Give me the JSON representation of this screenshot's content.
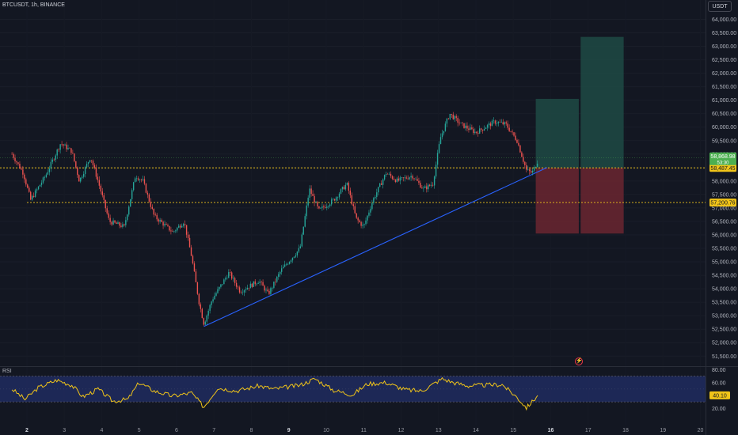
{
  "header": {
    "title": "BTCUSDT, 1h, BINANCE"
  },
  "toolbar": {
    "currency": "USDT"
  },
  "rsi": {
    "label": "RSI",
    "value_label": "40.10"
  },
  "alert_icon": "bolt-icon",
  "colors": {
    "background": "#131722",
    "up": "#26a69a",
    "down": "#ef5350",
    "trendline": "#2962ff",
    "level_line": "#f0c419",
    "rsi_line": "#f0c419",
    "rsi_band": "#1f2a5c",
    "profit_zone": "#1e4a44",
    "loss_zone": "#6b2630",
    "price_badge": "#4caf50",
    "level_badge": "#f0c419"
  },
  "chart_data": [
    {
      "type": "candlestick",
      "title": "BTCUSDT, 1h, BINANCE",
      "y_axis": {
        "unit": "USDT",
        "ylim": [
          51500,
          64000
        ],
        "ticks": [
          "64,000.00",
          "63,500.00",
          "63,000.00",
          "62,500.00",
          "62,000.00",
          "61,500.00",
          "61,000.00",
          "60,500.00",
          "60,000.00",
          "59,500.00",
          "59,000.00",
          "58,500.00",
          "58,000.00",
          "57,500.00",
          "57,000.00",
          "56,500.00",
          "56,000.00",
          "55,500.00",
          "55,000.00",
          "54,500.00",
          "54,000.00",
          "53,500.00",
          "53,000.00",
          "52,500.00",
          "52,000.00",
          "51,500.00"
        ]
      },
      "x_axis": {
        "ticks": [
          "2",
          "3",
          "4",
          "5",
          "6",
          "7",
          "8",
          "9",
          "10",
          "11",
          "12",
          "13",
          "14",
          "15",
          "16",
          "17",
          "18",
          "19",
          "20"
        ],
        "bold_ticks": [
          "2",
          "9",
          "16"
        ]
      },
      "price_path": [
        {
          "day": 1.6,
          "price": 59000
        },
        {
          "day": 1.9,
          "price": 58300
        },
        {
          "day": 2.1,
          "price": 57300
        },
        {
          "day": 2.5,
          "price": 58200
        },
        {
          "day": 2.9,
          "price": 59400
        },
        {
          "day": 3.2,
          "price": 59100
        },
        {
          "day": 3.4,
          "price": 58000
        },
        {
          "day": 3.7,
          "price": 58900
        },
        {
          "day": 3.9,
          "price": 58000
        },
        {
          "day": 4.2,
          "price": 56500
        },
        {
          "day": 4.6,
          "price": 56300
        },
        {
          "day": 4.9,
          "price": 58200
        },
        {
          "day": 5.1,
          "price": 58000
        },
        {
          "day": 5.4,
          "price": 56700
        },
        {
          "day": 5.9,
          "price": 56100
        },
        {
          "day": 6.2,
          "price": 56500
        },
        {
          "day": 6.4,
          "price": 55200
        },
        {
          "day": 6.6,
          "price": 53500
        },
        {
          "day": 6.73,
          "price": 52700
        },
        {
          "day": 6.95,
          "price": 53600
        },
        {
          "day": 7.4,
          "price": 54600
        },
        {
          "day": 7.7,
          "price": 53900
        },
        {
          "day": 8.2,
          "price": 54300
        },
        {
          "day": 8.45,
          "price": 53800
        },
        {
          "day": 8.8,
          "price": 54700
        },
        {
          "day": 9.3,
          "price": 55500
        },
        {
          "day": 9.55,
          "price": 57700
        },
        {
          "day": 9.8,
          "price": 56900
        },
        {
          "day": 10.2,
          "price": 57300
        },
        {
          "day": 10.55,
          "price": 57900
        },
        {
          "day": 10.8,
          "price": 56600
        },
        {
          "day": 11.0,
          "price": 56300
        },
        {
          "day": 11.25,
          "price": 57300
        },
        {
          "day": 11.6,
          "price": 58300
        },
        {
          "day": 11.9,
          "price": 58000
        },
        {
          "day": 12.3,
          "price": 58200
        },
        {
          "day": 12.6,
          "price": 57700
        },
        {
          "day": 12.85,
          "price": 57900
        },
        {
          "day": 13.05,
          "price": 59600
        },
        {
          "day": 13.3,
          "price": 60500
        },
        {
          "day": 13.6,
          "price": 60100
        },
        {
          "day": 14.0,
          "price": 59800
        },
        {
          "day": 14.5,
          "price": 60200
        },
        {
          "day": 14.8,
          "price": 60100
        },
        {
          "day": 15.1,
          "price": 59500
        },
        {
          "day": 15.35,
          "price": 58400
        },
        {
          "day": 15.5,
          "price": 58300
        },
        {
          "day": 15.65,
          "price": 58750
        }
      ],
      "annotations": [
        {
          "type": "trendline",
          "start": {
            "day": 6.73,
            "price": 52600
          },
          "end": {
            "day": 15.9,
            "price": 58500
          }
        },
        {
          "type": "horizontal_line",
          "price": 58487.45,
          "label": "58,487.45"
        },
        {
          "type": "horizontal_line",
          "price": 57200.76,
          "label": "57,200.76"
        },
        {
          "type": "position_box",
          "side": "long",
          "from_day": 15.6,
          "to_day": 16.75,
          "entry": 58487.45,
          "target": 61050,
          "stop": 56050
        },
        {
          "type": "position_box",
          "side": "long",
          "from_day": 16.8,
          "to_day": 17.95,
          "entry": 58487.45,
          "target": 63350,
          "stop": 56050
        }
      ],
      "last_price": {
        "label": "58,868.98",
        "countdown": "53:30",
        "price": 58868.98
      }
    },
    {
      "type": "line",
      "title": "RSI",
      "y_axis": {
        "ylim": [
          15,
          85
        ],
        "ticks": [
          "80.00",
          "60.00",
          "40.00",
          "20.00"
        ],
        "band": [
          30,
          70
        ]
      },
      "last_value": 40.1,
      "points": [
        {
          "day": 1.6,
          "value": 50
        },
        {
          "day": 1.95,
          "value": 34
        },
        {
          "day": 2.3,
          "value": 52
        },
        {
          "day": 2.8,
          "value": 64
        },
        {
          "day": 3.2,
          "value": 56
        },
        {
          "day": 3.5,
          "value": 38
        },
        {
          "day": 3.9,
          "value": 50
        },
        {
          "day": 4.3,
          "value": 31
        },
        {
          "day": 4.7,
          "value": 34
        },
        {
          "day": 5.0,
          "value": 60
        },
        {
          "day": 5.4,
          "value": 47
        },
        {
          "day": 5.9,
          "value": 39
        },
        {
          "day": 6.4,
          "value": 44
        },
        {
          "day": 6.73,
          "value": 22
        },
        {
          "day": 7.1,
          "value": 52
        },
        {
          "day": 7.6,
          "value": 47
        },
        {
          "day": 8.2,
          "value": 55
        },
        {
          "day": 8.6,
          "value": 50
        },
        {
          "day": 9.3,
          "value": 56
        },
        {
          "day": 9.7,
          "value": 66
        },
        {
          "day": 10.2,
          "value": 48
        },
        {
          "day": 10.7,
          "value": 41
        },
        {
          "day": 11.1,
          "value": 58
        },
        {
          "day": 11.6,
          "value": 60
        },
        {
          "day": 12.1,
          "value": 49
        },
        {
          "day": 12.55,
          "value": 47
        },
        {
          "day": 13.1,
          "value": 66
        },
        {
          "day": 13.4,
          "value": 60
        },
        {
          "day": 13.8,
          "value": 55
        },
        {
          "day": 14.2,
          "value": 56
        },
        {
          "day": 14.7,
          "value": 57
        },
        {
          "day": 15.1,
          "value": 37
        },
        {
          "day": 15.35,
          "value": 21
        },
        {
          "day": 15.5,
          "value": 30
        },
        {
          "day": 15.65,
          "value": 40
        }
      ]
    }
  ]
}
